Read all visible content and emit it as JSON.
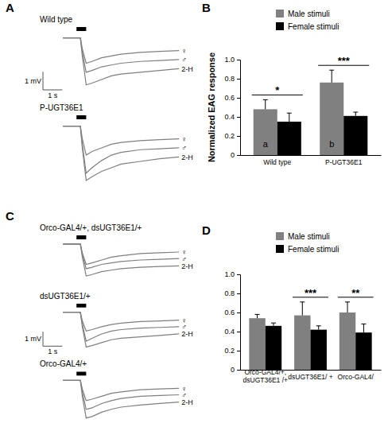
{
  "chart_data": [
    {
      "type": "line",
      "title": "A",
      "tick_labels": false,
      "xlim": [
        -1.2,
        6.2
      ],
      "ylim": [
        -3.4,
        0.6
      ],
      "x": [
        0,
        0.7,
        0.9,
        1.0,
        1.2,
        1.5,
        2.0,
        2.5,
        3.0,
        4.0,
        5.0,
        6.0
      ],
      "stimulus": [
        0.7,
        1.2
      ],
      "groups": [
        {
          "name": "Wild type",
          "scale_bar": {
            "x": 1,
            "y": 1,
            "x_label": "1 s",
            "y_label": "1 mV"
          },
          "series": [
            {
              "name": "♂",
              "color": "#7f7f7f",
              "values": [
                0,
                0,
                0,
                -0.8,
                -1.9,
                -1.8,
                -1.6,
                -1.5,
                -1.4,
                -1.3,
                -1.25,
                -1.2
              ]
            },
            {
              "name": "♀",
              "color": "#7f7f7f",
              "values": [
                0,
                0,
                0,
                -0.6,
                -1.4,
                -1.3,
                -1.1,
                -1.0,
                -0.9,
                -0.8,
                -0.75,
                -0.7
              ]
            },
            {
              "name": "2-H",
              "color": "#7f7f7f",
              "values": [
                0,
                0,
                0,
                -1.0,
                -2.6,
                -2.5,
                -2.3,
                -2.1,
                -2.0,
                -1.9,
                -1.8,
                -1.7
              ]
            }
          ]
        },
        {
          "name": "P-UGT36E1",
          "series": [
            {
              "name": "♂",
              "color": "#7f7f7f",
              "values": [
                0,
                0,
                0,
                -1.0,
                -2.6,
                -2.3,
                -1.9,
                -1.6,
                -1.45,
                -1.3,
                -1.25,
                -1.2
              ]
            },
            {
              "name": "♀",
              "color": "#7f7f7f",
              "values": [
                0,
                0,
                0,
                -0.7,
                -1.6,
                -1.4,
                -1.2,
                -1.0,
                -0.9,
                -0.8,
                -0.75,
                -0.7
              ]
            },
            {
              "name": "2-H",
              "color": "#7f7f7f",
              "values": [
                0,
                0,
                0,
                -1.2,
                -3.0,
                -2.8,
                -2.5,
                -2.3,
                -2.1,
                -1.95,
                -1.8,
                -1.7
              ]
            }
          ]
        }
      ]
    },
    {
      "type": "bar",
      "title": "B",
      "ylabel": "Normalized EAG response",
      "legend": "top",
      "categories": [
        "Wild type",
        "P-UGT36E1"
      ],
      "series": [
        {
          "name": "Male stimuli",
          "color": "#808080",
          "values": [
            0.48,
            0.76
          ],
          "errors": [
            0.1,
            0.13
          ],
          "labels": [
            "a",
            "b"
          ]
        },
        {
          "name": "Female stimuli",
          "color": "#000000",
          "values": [
            0.35,
            0.41
          ],
          "errors": [
            0.09,
            0.04
          ]
        }
      ],
      "ylim": [
        0,
        1
      ],
      "yticks": [
        0,
        0.2,
        0.4,
        0.6,
        0.8,
        {
          "value": 1,
          "label": "1.0"
        }
      ],
      "annotations": [
        {
          "category": 0,
          "text": "*"
        },
        {
          "category": 1,
          "text": "***"
        }
      ]
    },
    {
      "type": "line",
      "title": "C",
      "tick_labels": false,
      "xlim": [
        -1.2,
        6.2
      ],
      "ylim": [
        -3.0,
        0.6
      ],
      "x": [
        0,
        0.7,
        0.9,
        1.0,
        1.2,
        1.5,
        2.0,
        2.5,
        3.0,
        4.0,
        5.0,
        6.0
      ],
      "stimulus": [
        0.7,
        1.2
      ],
      "groups": [
        {
          "name": "Orco-GAL4/+, dsUGT36E1/+",
          "series": [
            {
              "name": "♀",
              "color": "#7f7f7f",
              "values": [
                0,
                0,
                0,
                -0.6,
                -1.4,
                -1.3,
                -1.1,
                -0.9,
                -0.8,
                -0.65,
                -0.6,
                -0.55
              ]
            },
            {
              "name": "♂",
              "color": "#7f7f7f",
              "values": [
                0,
                0,
                0,
                -0.7,
                -1.7,
                -1.6,
                -1.4,
                -1.3,
                -1.2,
                -1.1,
                -1.05,
                -1.0
              ]
            },
            {
              "name": "2-H",
              "color": "#7f7f7f",
              "values": [
                0,
                0,
                0,
                -0.9,
                -2.2,
                -2.1,
                -1.9,
                -1.8,
                -1.7,
                -1.6,
                -1.55,
                -1.5
              ]
            }
          ]
        },
        {
          "name": "dsUGT36E1/+",
          "scale_bar": {
            "x": 1,
            "y": 1,
            "x_label": "1 s",
            "y_label": "1 mV"
          },
          "series": [
            {
              "name": "♀",
              "color": "#7f7f7f",
              "values": [
                0,
                0,
                0,
                -0.6,
                -1.3,
                -1.2,
                -1.0,
                -0.85,
                -0.75,
                -0.65,
                -0.6,
                -0.55
              ]
            },
            {
              "name": "♂",
              "color": "#7f7f7f",
              "values": [
                0,
                0,
                0,
                -0.8,
                -2.0,
                -1.8,
                -1.5,
                -1.3,
                -1.2,
                -1.1,
                -1.05,
                -1.0
              ]
            },
            {
              "name": "2-H",
              "color": "#7f7f7f",
              "values": [
                0,
                0,
                0,
                -1.0,
                -2.4,
                -2.3,
                -2.1,
                -1.9,
                -1.8,
                -1.7,
                -1.6,
                -1.5
              ]
            }
          ]
        },
        {
          "name": "Orco-GAL4/+",
          "series": [
            {
              "name": "♀",
              "color": "#7f7f7f",
              "values": [
                0,
                0,
                0,
                -0.6,
                -1.4,
                -1.3,
                -1.1,
                -0.9,
                -0.8,
                -0.65,
                -0.6,
                -0.55
              ]
            },
            {
              "name": "♂",
              "color": "#7f7f7f",
              "values": [
                0,
                0,
                0,
                -0.8,
                -2.0,
                -1.9,
                -1.6,
                -1.4,
                -1.25,
                -1.1,
                -1.05,
                -1.0
              ]
            },
            {
              "name": "2-H",
              "color": "#7f7f7f",
              "values": [
                0,
                0,
                0,
                -1.1,
                -2.6,
                -2.5,
                -2.2,
                -2.0,
                -1.85,
                -1.7,
                -1.6,
                -1.5
              ]
            }
          ]
        }
      ]
    },
    {
      "type": "bar",
      "title": "D",
      "legend": "top",
      "categories": [
        "Orco-GAL4/+, dsUGT36E1 /+",
        "dsUGT36E1/ +",
        "Orco-GAL4/"
      ],
      "series": [
        {
          "name": "Male stimuli",
          "color": "#808080",
          "values": [
            0.54,
            0.57,
            0.6
          ],
          "errors": [
            0.04,
            0.14,
            0.11
          ]
        },
        {
          "name": "Female stimuli",
          "color": "#000000",
          "values": [
            0.46,
            0.42,
            0.39
          ],
          "errors": [
            0.03,
            0.04,
            0.09
          ]
        }
      ],
      "ylim": [
        0,
        1
      ],
      "yticks": [
        0,
        0.2,
        0.4,
        0.6,
        0.8,
        {
          "value": 1,
          "label": "1.0"
        }
      ],
      "annotations": [
        {
          "category": 1,
          "text": "***"
        },
        {
          "category": 2,
          "text": "**"
        }
      ]
    }
  ]
}
